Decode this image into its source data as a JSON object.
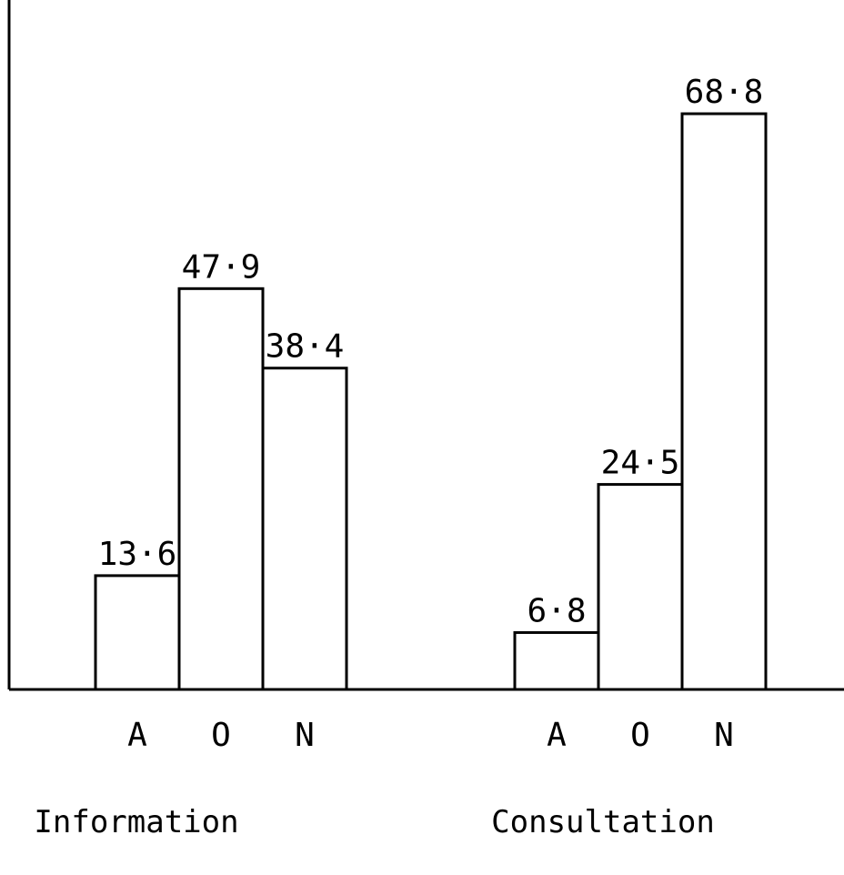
{
  "chart_data": {
    "type": "bar",
    "title": "",
    "xlabel": "",
    "ylabel": "",
    "ylim": [
      0,
      80
    ],
    "grid": false,
    "groups": [
      {
        "name": "Information",
        "categories": [
          "A",
          "O",
          "N"
        ],
        "values": [
          13.6,
          47.9,
          38.4
        ],
        "labels": [
          "13·6",
          "47·9",
          "38·4"
        ]
      },
      {
        "name": "Consultation",
        "categories": [
          "A",
          "O",
          "N"
        ],
        "values": [
          6.8,
          24.5,
          68.8
        ],
        "labels": [
          "6·8",
          "24·5",
          "68·8"
        ]
      }
    ]
  },
  "colors": {
    "stroke": "#000000",
    "fill": "#ffffff"
  }
}
